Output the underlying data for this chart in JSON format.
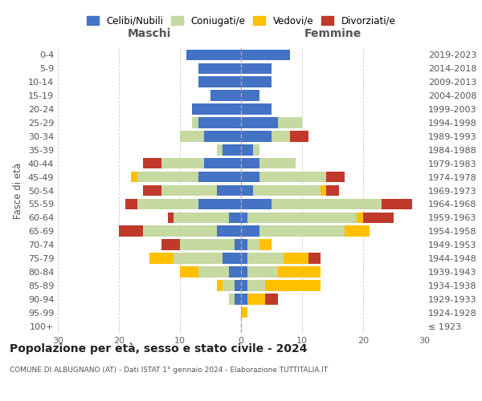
{
  "age_groups": [
    "100+",
    "95-99",
    "90-94",
    "85-89",
    "80-84",
    "75-79",
    "70-74",
    "65-69",
    "60-64",
    "55-59",
    "50-54",
    "45-49",
    "40-44",
    "35-39",
    "30-34",
    "25-29",
    "20-24",
    "15-19",
    "10-14",
    "5-9",
    "0-4"
  ],
  "birth_years": [
    "≤ 1923",
    "1924-1928",
    "1929-1933",
    "1934-1938",
    "1939-1943",
    "1944-1948",
    "1949-1953",
    "1954-1958",
    "1959-1963",
    "1964-1968",
    "1969-1973",
    "1974-1978",
    "1979-1983",
    "1984-1988",
    "1989-1993",
    "1994-1998",
    "1999-2003",
    "2004-2008",
    "2009-2013",
    "2014-2018",
    "2019-2023"
  ],
  "maschi": {
    "celibi": [
      0,
      0,
      1,
      1,
      2,
      3,
      1,
      4,
      2,
      7,
      4,
      7,
      6,
      3,
      6,
      7,
      8,
      5,
      7,
      7,
      9
    ],
    "coniugati": [
      0,
      0,
      1,
      2,
      5,
      8,
      9,
      12,
      9,
      10,
      9,
      10,
      7,
      1,
      4,
      1,
      0,
      0,
      0,
      0,
      0
    ],
    "vedovi": [
      0,
      0,
      0,
      1,
      3,
      4,
      0,
      0,
      0,
      0,
      0,
      1,
      0,
      0,
      0,
      0,
      0,
      0,
      0,
      0,
      0
    ],
    "divorziati": [
      0,
      0,
      0,
      0,
      0,
      0,
      3,
      4,
      1,
      2,
      3,
      0,
      3,
      0,
      0,
      0,
      0,
      0,
      0,
      0,
      0
    ]
  },
  "femmine": {
    "nubili": [
      0,
      0,
      1,
      1,
      1,
      1,
      1,
      3,
      1,
      5,
      2,
      3,
      3,
      2,
      5,
      6,
      5,
      3,
      5,
      5,
      8
    ],
    "coniugate": [
      0,
      0,
      0,
      3,
      5,
      6,
      2,
      14,
      18,
      18,
      11,
      11,
      6,
      1,
      3,
      4,
      0,
      0,
      0,
      0,
      0
    ],
    "vedove": [
      0,
      1,
      3,
      9,
      7,
      4,
      2,
      4,
      1,
      0,
      1,
      0,
      0,
      0,
      0,
      0,
      0,
      0,
      0,
      0,
      0
    ],
    "divorziate": [
      0,
      0,
      2,
      0,
      0,
      2,
      0,
      0,
      5,
      5,
      2,
      3,
      0,
      0,
      3,
      0,
      0,
      0,
      0,
      0,
      0
    ]
  },
  "colors": {
    "celibi": "#4472c4",
    "coniugati": "#c5d9a0",
    "vedovi": "#ffc000",
    "divorziati": "#c0392b"
  },
  "legend_labels": [
    "Celibi/Nubili",
    "Coniugati/e",
    "Vedovi/e",
    "Divorziati/e"
  ],
  "xlim": 30,
  "title": "Popolazione per età, sesso e stato civile - 2024",
  "subtitle": "COMUNE DI ALBUGNANO (AT) - Dati ISTAT 1° gennaio 2024 - Elaborazione TUTTITALIA.IT",
  "ylabel_left": "Fasce di età",
  "header_maschi": "Maschi",
  "header_femmine": "Femmine",
  "background_color": "#ffffff",
  "grid_color": "#cccccc"
}
